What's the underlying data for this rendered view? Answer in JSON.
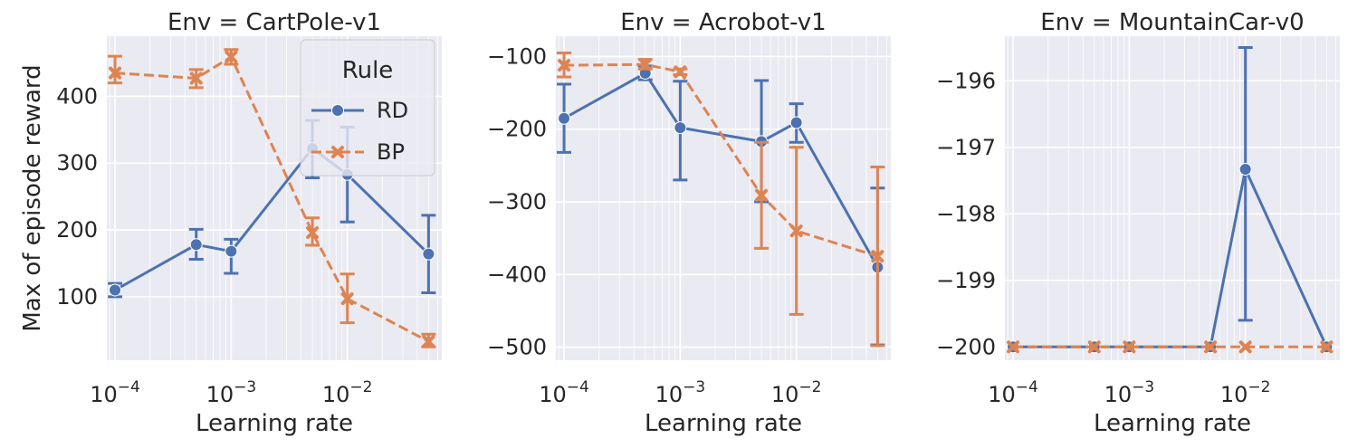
{
  "chart_data": [
    {
      "type": "line",
      "title": "Env = CartPole-v1",
      "xlabel": "Learning rate",
      "ylabel": "Max of episode reward",
      "xscale": "log",
      "xlim": [
        8.5e-05,
        0.065
      ],
      "ylim": [
        5,
        490
      ],
      "xticks": [
        0.0001,
        0.001,
        0.01
      ],
      "xtick_labels": [
        {
          "base": "10",
          "exp": "−4"
        },
        {
          "base": "10",
          "exp": "−3"
        },
        {
          "base": "10",
          "exp": "−2"
        }
      ],
      "yticks": [
        100,
        200,
        300,
        400
      ],
      "ytick_labels": [
        "100",
        "200",
        "300",
        "400"
      ],
      "grid": true,
      "legend": {
        "title": "Rule",
        "placement": "top-right",
        "entries": [
          "RD",
          "BP"
        ]
      },
      "series": [
        {
          "name": "RD",
          "color": "#4c72b0",
          "marker": "circle",
          "dash": "solid",
          "x": [
            0.0001,
            0.0005,
            0.001,
            0.005,
            0.01,
            0.05
          ],
          "y": [
            110,
            178,
            168,
            322,
            283,
            164
          ],
          "err_low": [
            100,
            156,
            135,
            278,
            212,
            106
          ],
          "err_high": [
            120,
            201,
            186,
            364,
            354,
            222
          ]
        },
        {
          "name": "BP",
          "color": "#dd8452",
          "marker": "x",
          "dash": "dashed",
          "x": [
            0.0001,
            0.0005,
            0.001,
            0.005,
            0.01,
            0.05
          ],
          "y": [
            435,
            427,
            459,
            196,
            97,
            33
          ],
          "err_low": [
            420,
            413,
            448,
            177,
            61,
            25
          ],
          "err_high": [
            460,
            440,
            470,
            218,
            134,
            44
          ]
        }
      ]
    },
    {
      "type": "line",
      "title": "Env = Acrobot-v1",
      "xlabel": "Learning rate",
      "ylabel": "",
      "xscale": "log",
      "xlim": [
        8.5e-05,
        0.065
      ],
      "ylim": [
        -518,
        -72
      ],
      "xticks": [
        0.0001,
        0.001,
        0.01
      ],
      "xtick_labels": [
        {
          "base": "10",
          "exp": "−4"
        },
        {
          "base": "10",
          "exp": "−3"
        },
        {
          "base": "10",
          "exp": "−2"
        }
      ],
      "yticks": [
        -100,
        -200,
        -300,
        -400,
        -500
      ],
      "ytick_labels": [
        "−100",
        "−200",
        "−300",
        "−400",
        "−500"
      ],
      "grid": true,
      "series": [
        {
          "name": "RD",
          "color": "#4c72b0",
          "marker": "circle",
          "dash": "solid",
          "x": [
            0.0001,
            0.0005,
            0.001,
            0.005,
            0.01,
            0.05
          ],
          "y": [
            -185,
            -123,
            -198,
            -217,
            -191,
            -390
          ],
          "err_low": [
            -232,
            -132,
            -270,
            -300,
            -218,
            -497
          ],
          "err_high": [
            -138,
            -113,
            -134,
            -133,
            -165,
            -281
          ]
        },
        {
          "name": "BP",
          "color": "#dd8452",
          "marker": "x",
          "dash": "dashed",
          "x": [
            0.0001,
            0.0005,
            0.001,
            0.005,
            0.01,
            0.05
          ],
          "y": [
            -112,
            -111,
            -121,
            -291,
            -340,
            -375
          ],
          "err_low": [
            -128,
            -117,
            -125,
            -364,
            -455,
            -498
          ],
          "err_high": [
            -95,
            -104,
            -117,
            -218,
            -225,
            -252
          ]
        }
      ]
    },
    {
      "type": "line",
      "title": "Env = MountainCar-v0",
      "xlabel": "Learning rate",
      "ylabel": "",
      "xscale": "log",
      "xlim": [
        8.5e-05,
        0.065
      ],
      "ylim": [
        -200.2,
        -195.33
      ],
      "xticks": [
        0.0001,
        0.001,
        0.01
      ],
      "xtick_labels": [
        {
          "base": "10",
          "exp": "−4"
        },
        {
          "base": "10",
          "exp": "−3"
        },
        {
          "base": "10",
          "exp": "−2"
        }
      ],
      "yticks": [
        -196,
        -197,
        -198,
        -199,
        -200
      ],
      "ytick_labels": [
        "−196",
        "−197",
        "−198",
        "−199",
        "−200"
      ],
      "grid": true,
      "series": [
        {
          "name": "RD",
          "color": "#4c72b0",
          "marker": "circle",
          "dash": "solid",
          "x": [
            0.0001,
            0.0005,
            0.001,
            0.005,
            0.01,
            0.05
          ],
          "y": [
            -200,
            -200,
            -200,
            -200,
            -197.33,
            -200
          ],
          "err_low": [
            -200,
            -200,
            -200,
            -200,
            -199.6,
            -200
          ],
          "err_high": [
            -200,
            -200,
            -200,
            -200,
            -195.5,
            -200
          ]
        },
        {
          "name": "BP",
          "color": "#dd8452",
          "marker": "x",
          "dash": "dashed",
          "x": [
            0.0001,
            0.0005,
            0.001,
            0.005,
            0.01,
            0.05
          ],
          "y": [
            -200,
            -200,
            -200,
            -200,
            -200,
            -200
          ],
          "err_low": [
            -200,
            -200,
            -200,
            -200,
            -200,
            -200
          ],
          "err_high": [
            -200,
            -200,
            -200,
            -200,
            -200,
            -200
          ]
        }
      ]
    }
  ]
}
